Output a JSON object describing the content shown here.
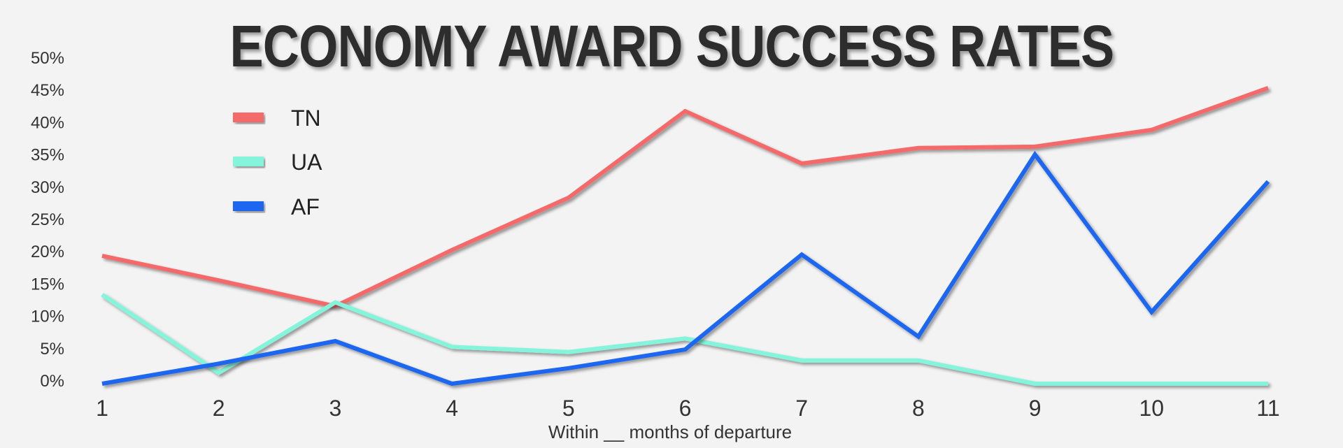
{
  "chart_data": {
    "type": "line",
    "title": "ECONOMY AWARD SUCCESS RATES",
    "xlabel": "Within __ months of departure",
    "ylabel": "",
    "x": [
      1,
      2,
      3,
      4,
      5,
      6,
      7,
      8,
      9,
      10,
      11
    ],
    "x_tick_labels": [
      "1",
      "2",
      "3",
      "4",
      "5",
      "6",
      "7",
      "8",
      "9",
      "10",
      "11"
    ],
    "y_tick_labels": [
      "0%",
      "5%",
      "10%",
      "15%",
      "20%",
      "25%",
      "30%",
      "35%",
      "40%",
      "45%",
      "50%"
    ],
    "ylim": [
      0,
      50
    ],
    "grid": false,
    "legend_position": "top-left",
    "series": [
      {
        "name": "TN",
        "color": "#f46b6b",
        "values": [
          19.8,
          16,
          12,
          20.7,
          28.8,
          42.2,
          34.1,
          36.5,
          36.7,
          39.3,
          45.8
        ]
      },
      {
        "name": "UA",
        "color": "#84f5da",
        "values": [
          13.8,
          1.7,
          12.6,
          5.7,
          4.9,
          7.0,
          3.6,
          3.6,
          0,
          0,
          0
        ]
      },
      {
        "name": "AF",
        "color": "#1a66f0",
        "values": [
          0,
          3.1,
          6.6,
          0,
          2.4,
          5.3,
          20,
          7.3,
          35.5,
          11.1,
          31.3
        ]
      }
    ]
  }
}
